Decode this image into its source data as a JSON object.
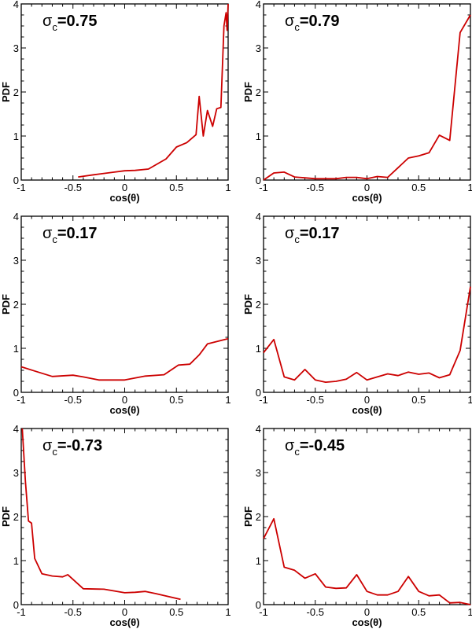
{
  "chart_data": [
    {
      "type": "line",
      "title": "",
      "annotation_symbol": "σ",
      "annotation_sub": "c",
      "annotation_value": "=0.75",
      "xlabel": "cos(θ)",
      "ylabel": "PDF",
      "xlim": [
        -1,
        1
      ],
      "ylim": [
        0,
        4
      ],
      "grid": false,
      "xticks": [
        "-1",
        "-0.5",
        "0",
        "0.5",
        "1"
      ],
      "yticks": [
        "0",
        "1",
        "2",
        "3",
        "4"
      ],
      "color": "#cc0000",
      "x": [
        -0.45,
        -0.3,
        -0.1,
        0,
        0.1,
        0.23,
        0.4,
        0.5,
        0.6,
        0.69,
        0.72,
        0.76,
        0.8,
        0.85,
        0.89,
        0.93,
        0.96,
        0.98,
        0.99,
        1.0
      ],
      "y": [
        0.07,
        0.12,
        0.18,
        0.21,
        0.22,
        0.25,
        0.48,
        0.75,
        0.85,
        1.03,
        1.9,
        1.0,
        1.58,
        1.22,
        1.62,
        1.65,
        3.5,
        3.8,
        3.4,
        4.0
      ]
    },
    {
      "type": "line",
      "title": "",
      "annotation_symbol": "σ",
      "annotation_sub": "c",
      "annotation_value": "=0.79",
      "xlabel": "cos(θ)",
      "ylabel": "PDF",
      "xlim": [
        -1,
        1
      ],
      "ylim": [
        0,
        4
      ],
      "grid": false,
      "xticks": [
        "-1",
        "-0.5",
        "0",
        "0.5",
        "1"
      ],
      "yticks": [
        "0",
        "1",
        "2",
        "3",
        "4"
      ],
      "color": "#cc0000",
      "x": [
        -1,
        -0.9,
        -0.8,
        -0.7,
        -0.6,
        -0.5,
        -0.4,
        -0.3,
        -0.2,
        -0.1,
        0,
        0.1,
        0.2,
        0.3,
        0.4,
        0.5,
        0.6,
        0.7,
        0.8,
        0.9,
        1.0
      ],
      "y": [
        0,
        0.16,
        0.18,
        0.07,
        0.05,
        0.03,
        0.03,
        0.03,
        0.06,
        0.06,
        0.03,
        0.08,
        0.06,
        0.28,
        0.5,
        0.55,
        0.62,
        1.02,
        0.9,
        3.35,
        3.75
      ]
    },
    {
      "type": "line",
      "title": "",
      "annotation_symbol": "σ",
      "annotation_sub": "c",
      "annotation_value": "=0.17",
      "xlabel": "cos(θ)",
      "ylabel": "PDF",
      "xlim": [
        -1,
        1
      ],
      "ylim": [
        0,
        4
      ],
      "grid": false,
      "xticks": [
        "-1",
        "-0.5",
        "0",
        "0.5",
        "1"
      ],
      "yticks": [
        "0",
        "1",
        "2",
        "3",
        "4"
      ],
      "color": "#cc0000",
      "x": [
        -1,
        -0.85,
        -0.7,
        -0.5,
        -0.4,
        -0.25,
        0,
        0.2,
        0.38,
        0.52,
        0.63,
        0.72,
        0.8,
        1.0
      ],
      "y": [
        0.58,
        0.47,
        0.36,
        0.39,
        0.35,
        0.28,
        0.28,
        0.37,
        0.4,
        0.62,
        0.64,
        0.85,
        1.1,
        1.22
      ]
    },
    {
      "type": "line",
      "title": "",
      "annotation_symbol": "σ",
      "annotation_sub": "c",
      "annotation_value": "=0.17",
      "xlabel": "cos(θ)",
      "ylabel": "PDF",
      "xlim": [
        -1,
        1
      ],
      "ylim": [
        0,
        4
      ],
      "grid": false,
      "xticks": [
        "-1",
        "-0.5",
        "0",
        "0.5",
        "1"
      ],
      "yticks": [
        "0",
        "1",
        "2",
        "3",
        "4"
      ],
      "color": "#cc0000",
      "x": [
        -1,
        -0.9,
        -0.8,
        -0.7,
        -0.6,
        -0.5,
        -0.4,
        -0.3,
        -0.2,
        -0.1,
        0,
        0.1,
        0.2,
        0.3,
        0.4,
        0.5,
        0.6,
        0.7,
        0.8,
        0.9,
        1.0
      ],
      "y": [
        0.9,
        1.2,
        0.35,
        0.28,
        0.52,
        0.28,
        0.23,
        0.25,
        0.3,
        0.45,
        0.28,
        0.35,
        0.42,
        0.38,
        0.46,
        0.41,
        0.44,
        0.33,
        0.4,
        0.95,
        2.4
      ]
    },
    {
      "type": "line",
      "title": "",
      "annotation_symbol": "σ",
      "annotation_sub": "c",
      "annotation_value": "=-0.73",
      "xlabel": "cos(θ)",
      "ylabel": "PDF",
      "xlim": [
        -1,
        1
      ],
      "ylim": [
        0,
        4
      ],
      "grid": false,
      "xticks": [
        "-1",
        "-0.5",
        "0",
        "0.5",
        "1"
      ],
      "yticks": [
        "0",
        "1",
        "2",
        "3",
        "4"
      ],
      "color": "#cc0000",
      "x": [
        -0.99,
        -0.96,
        -0.93,
        -0.9,
        -0.87,
        -0.8,
        -0.7,
        -0.6,
        -0.55,
        -0.4,
        -0.2,
        0,
        0.1,
        0.2,
        0.3,
        0.54
      ],
      "y": [
        4.0,
        2.8,
        1.9,
        1.85,
        1.05,
        0.7,
        0.65,
        0.63,
        0.68,
        0.36,
        0.35,
        0.27,
        0.28,
        0.3,
        0.25,
        0.12
      ]
    },
    {
      "type": "line",
      "title": "",
      "annotation_symbol": "σ",
      "annotation_sub": "c",
      "annotation_value": "=-0.45",
      "xlabel": "cos(θ)",
      "ylabel": "PDF",
      "xlim": [
        -1,
        1
      ],
      "ylim": [
        0,
        4
      ],
      "grid": false,
      "xticks": [
        "-1",
        "-0.5",
        "0",
        "0.5",
        "1"
      ],
      "yticks": [
        "0",
        "1",
        "2",
        "3",
        "4"
      ],
      "color": "#cc0000",
      "x": [
        -1,
        -0.9,
        -0.8,
        -0.7,
        -0.6,
        -0.5,
        -0.4,
        -0.3,
        -0.2,
        -0.1,
        0,
        0.1,
        0.2,
        0.3,
        0.4,
        0.5,
        0.6,
        0.7,
        0.8,
        0.9,
        1.0
      ],
      "y": [
        1.5,
        1.95,
        0.85,
        0.78,
        0.6,
        0.7,
        0.4,
        0.37,
        0.38,
        0.68,
        0.3,
        0.22,
        0.22,
        0.3,
        0.64,
        0.3,
        0.2,
        0.22,
        0.04,
        0.05,
        0.0
      ]
    }
  ]
}
